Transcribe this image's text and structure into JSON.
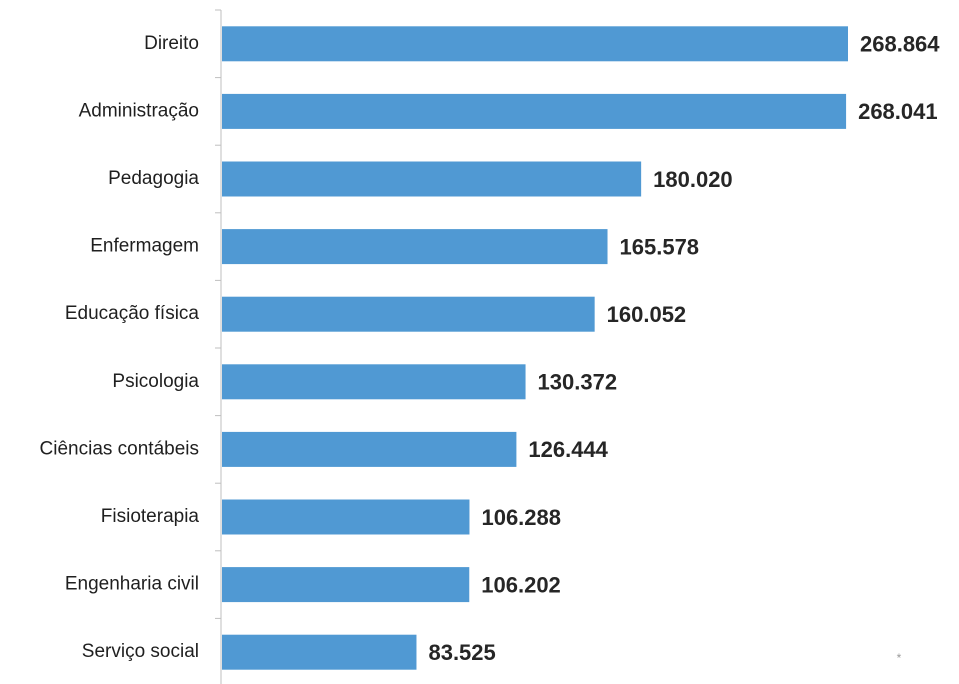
{
  "chart_data": {
    "type": "bar",
    "orientation": "horizontal",
    "categories": [
      "Direito",
      "Administração",
      "Pedagogia",
      "Enfermagem",
      "Educação física",
      "Psicologia",
      "Ciências contábeis",
      "Fisioterapia",
      "Engenharia civil",
      "Serviço social"
    ],
    "values": [
      268864,
      268041,
      180020,
      165578,
      160052,
      130372,
      126444,
      106288,
      106202,
      83525
    ],
    "value_labels": [
      "268.864",
      "268.041",
      "180.020",
      "165.578",
      "160.052",
      "130.372",
      "126.444",
      "106.288",
      "106.202",
      "83.525"
    ],
    "xlim": [
      0,
      268864
    ],
    "grid": false,
    "bar_color": "#5099d3",
    "note_mark": "*"
  }
}
